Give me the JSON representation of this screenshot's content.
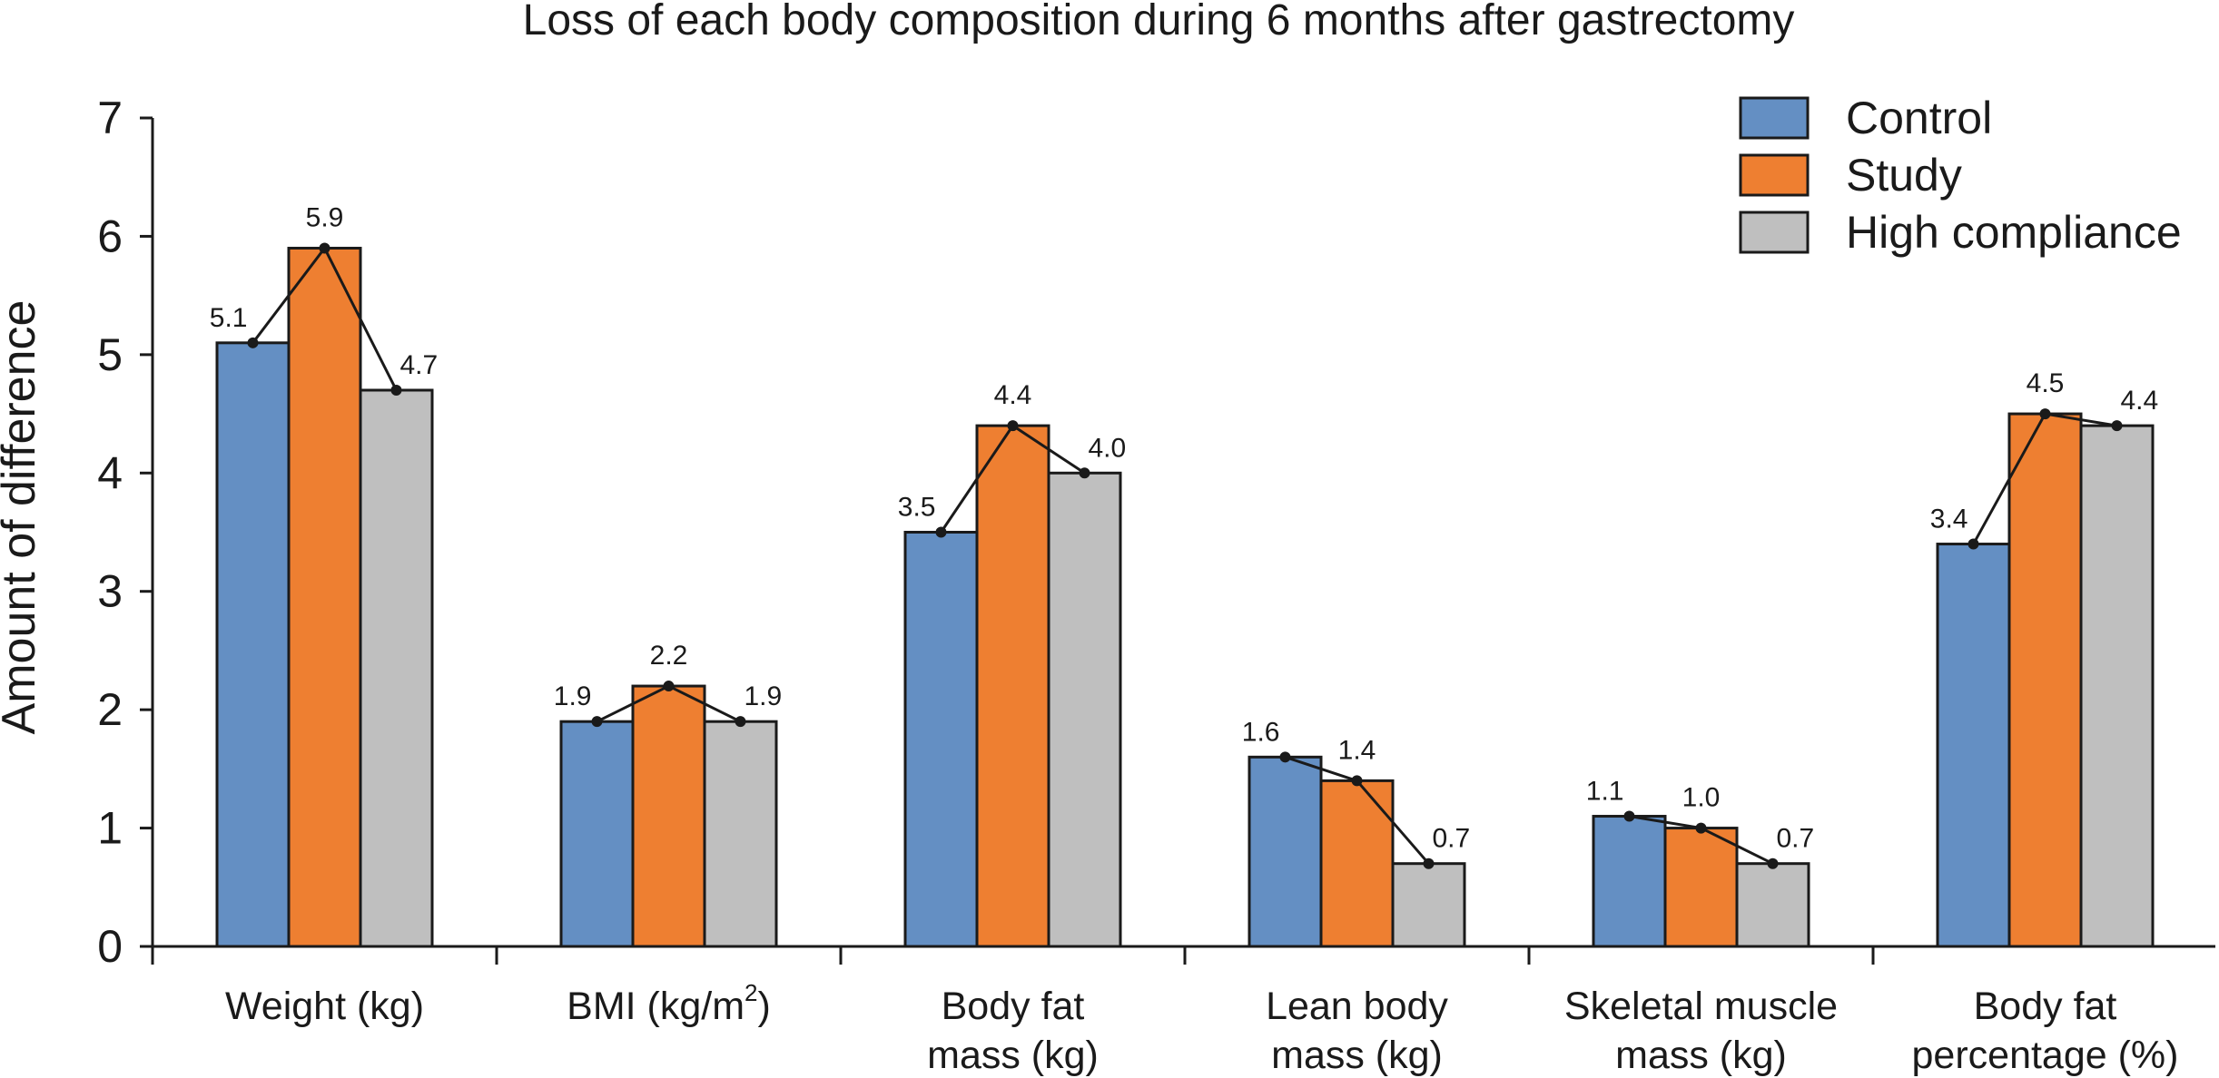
{
  "chart_data": {
    "type": "bar",
    "title": "Loss of each body composition during 6 months after gastrectomy",
    "xlabel": "",
    "ylabel": "Amount of difference",
    "ylim": [
      0,
      7
    ],
    "yticks": [
      "0",
      "1",
      "2",
      "3",
      "4",
      "5",
      "6",
      "7"
    ],
    "categories": [
      {
        "lines": [
          "Weight (kg)"
        ]
      },
      {
        "lines": [
          "BMI (kg/m"
        ],
        "superscript": "2",
        "suffix": ")"
      },
      {
        "lines": [
          "Body fat",
          "mass (kg)"
        ]
      },
      {
        "lines": [
          "Lean body",
          "mass (kg)"
        ]
      },
      {
        "lines": [
          "Skeletal muscle",
          "mass (kg)"
        ]
      },
      {
        "lines": [
          "Body fat",
          "percentage (%)"
        ]
      }
    ],
    "series": [
      {
        "name": "Control",
        "color": "#648fc3",
        "values": [
          5.1,
          1.9,
          3.5,
          1.6,
          1.1,
          3.4
        ],
        "labels": [
          "5.1",
          "1.9",
          "3.5",
          "1.6",
          "1.1",
          "3.4"
        ]
      },
      {
        "name": "Study",
        "color": "#ee7f31",
        "values": [
          5.9,
          2.2,
          4.4,
          1.4,
          1.0,
          4.5
        ],
        "labels": [
          "5.9",
          "2.2",
          "4.4",
          "1.4",
          "1.0",
          "4.5"
        ]
      },
      {
        "name": "High compliance",
        "color": "#bfbfbf",
        "values": [
          4.7,
          1.9,
          4.0,
          0.7,
          0.7,
          4.4
        ],
        "labels": [
          "4.7",
          "1.9",
          "4.0",
          "0.7",
          "0.7",
          "4.4"
        ]
      }
    ],
    "connector_lines": true,
    "legend_position": "top-right",
    "grid": false
  }
}
